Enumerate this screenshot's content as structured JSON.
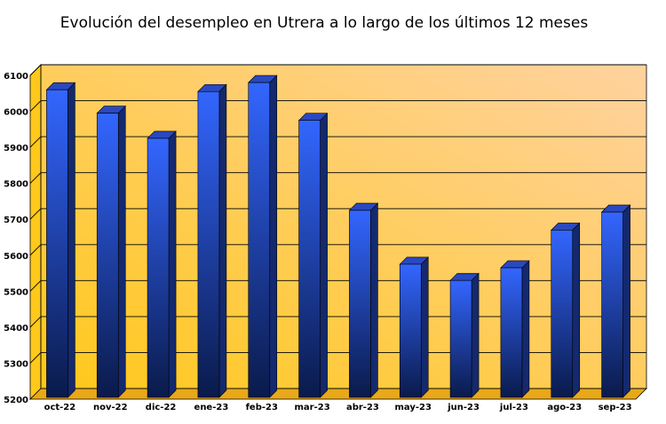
{
  "chart_data": {
    "type": "bar",
    "title": "Evolución del desempleo en Utrera a lo largo de los últimos 12 meses",
    "xlabel": "",
    "ylabel": "",
    "categories": [
      "oct-22",
      "nov-22",
      "dic-22",
      "ene-23",
      "feb-23",
      "mar-23",
      "abr-23",
      "may-23",
      "jun-23",
      "jul-23",
      "ago-23",
      "sep-23"
    ],
    "values": [
      6060,
      5995,
      5925,
      6055,
      6080,
      5975,
      5725,
      5575,
      5530,
      5565,
      5670,
      5720
    ],
    "ylim": [
      5200,
      6100
    ],
    "yticks": [
      5200,
      5300,
      5400,
      5500,
      5600,
      5700,
      5800,
      5900,
      6000,
      6100
    ],
    "grid": true,
    "legend": "none",
    "colors": {
      "bar_top": "#3366ff",
      "bar_bottom": "#0a1a4a",
      "bar_side": "#14296e",
      "bar_cap": "#2a48c0",
      "wall_light": "#ffd2a0",
      "wall_dark": "#ffc81a",
      "grid": "#000000"
    }
  }
}
